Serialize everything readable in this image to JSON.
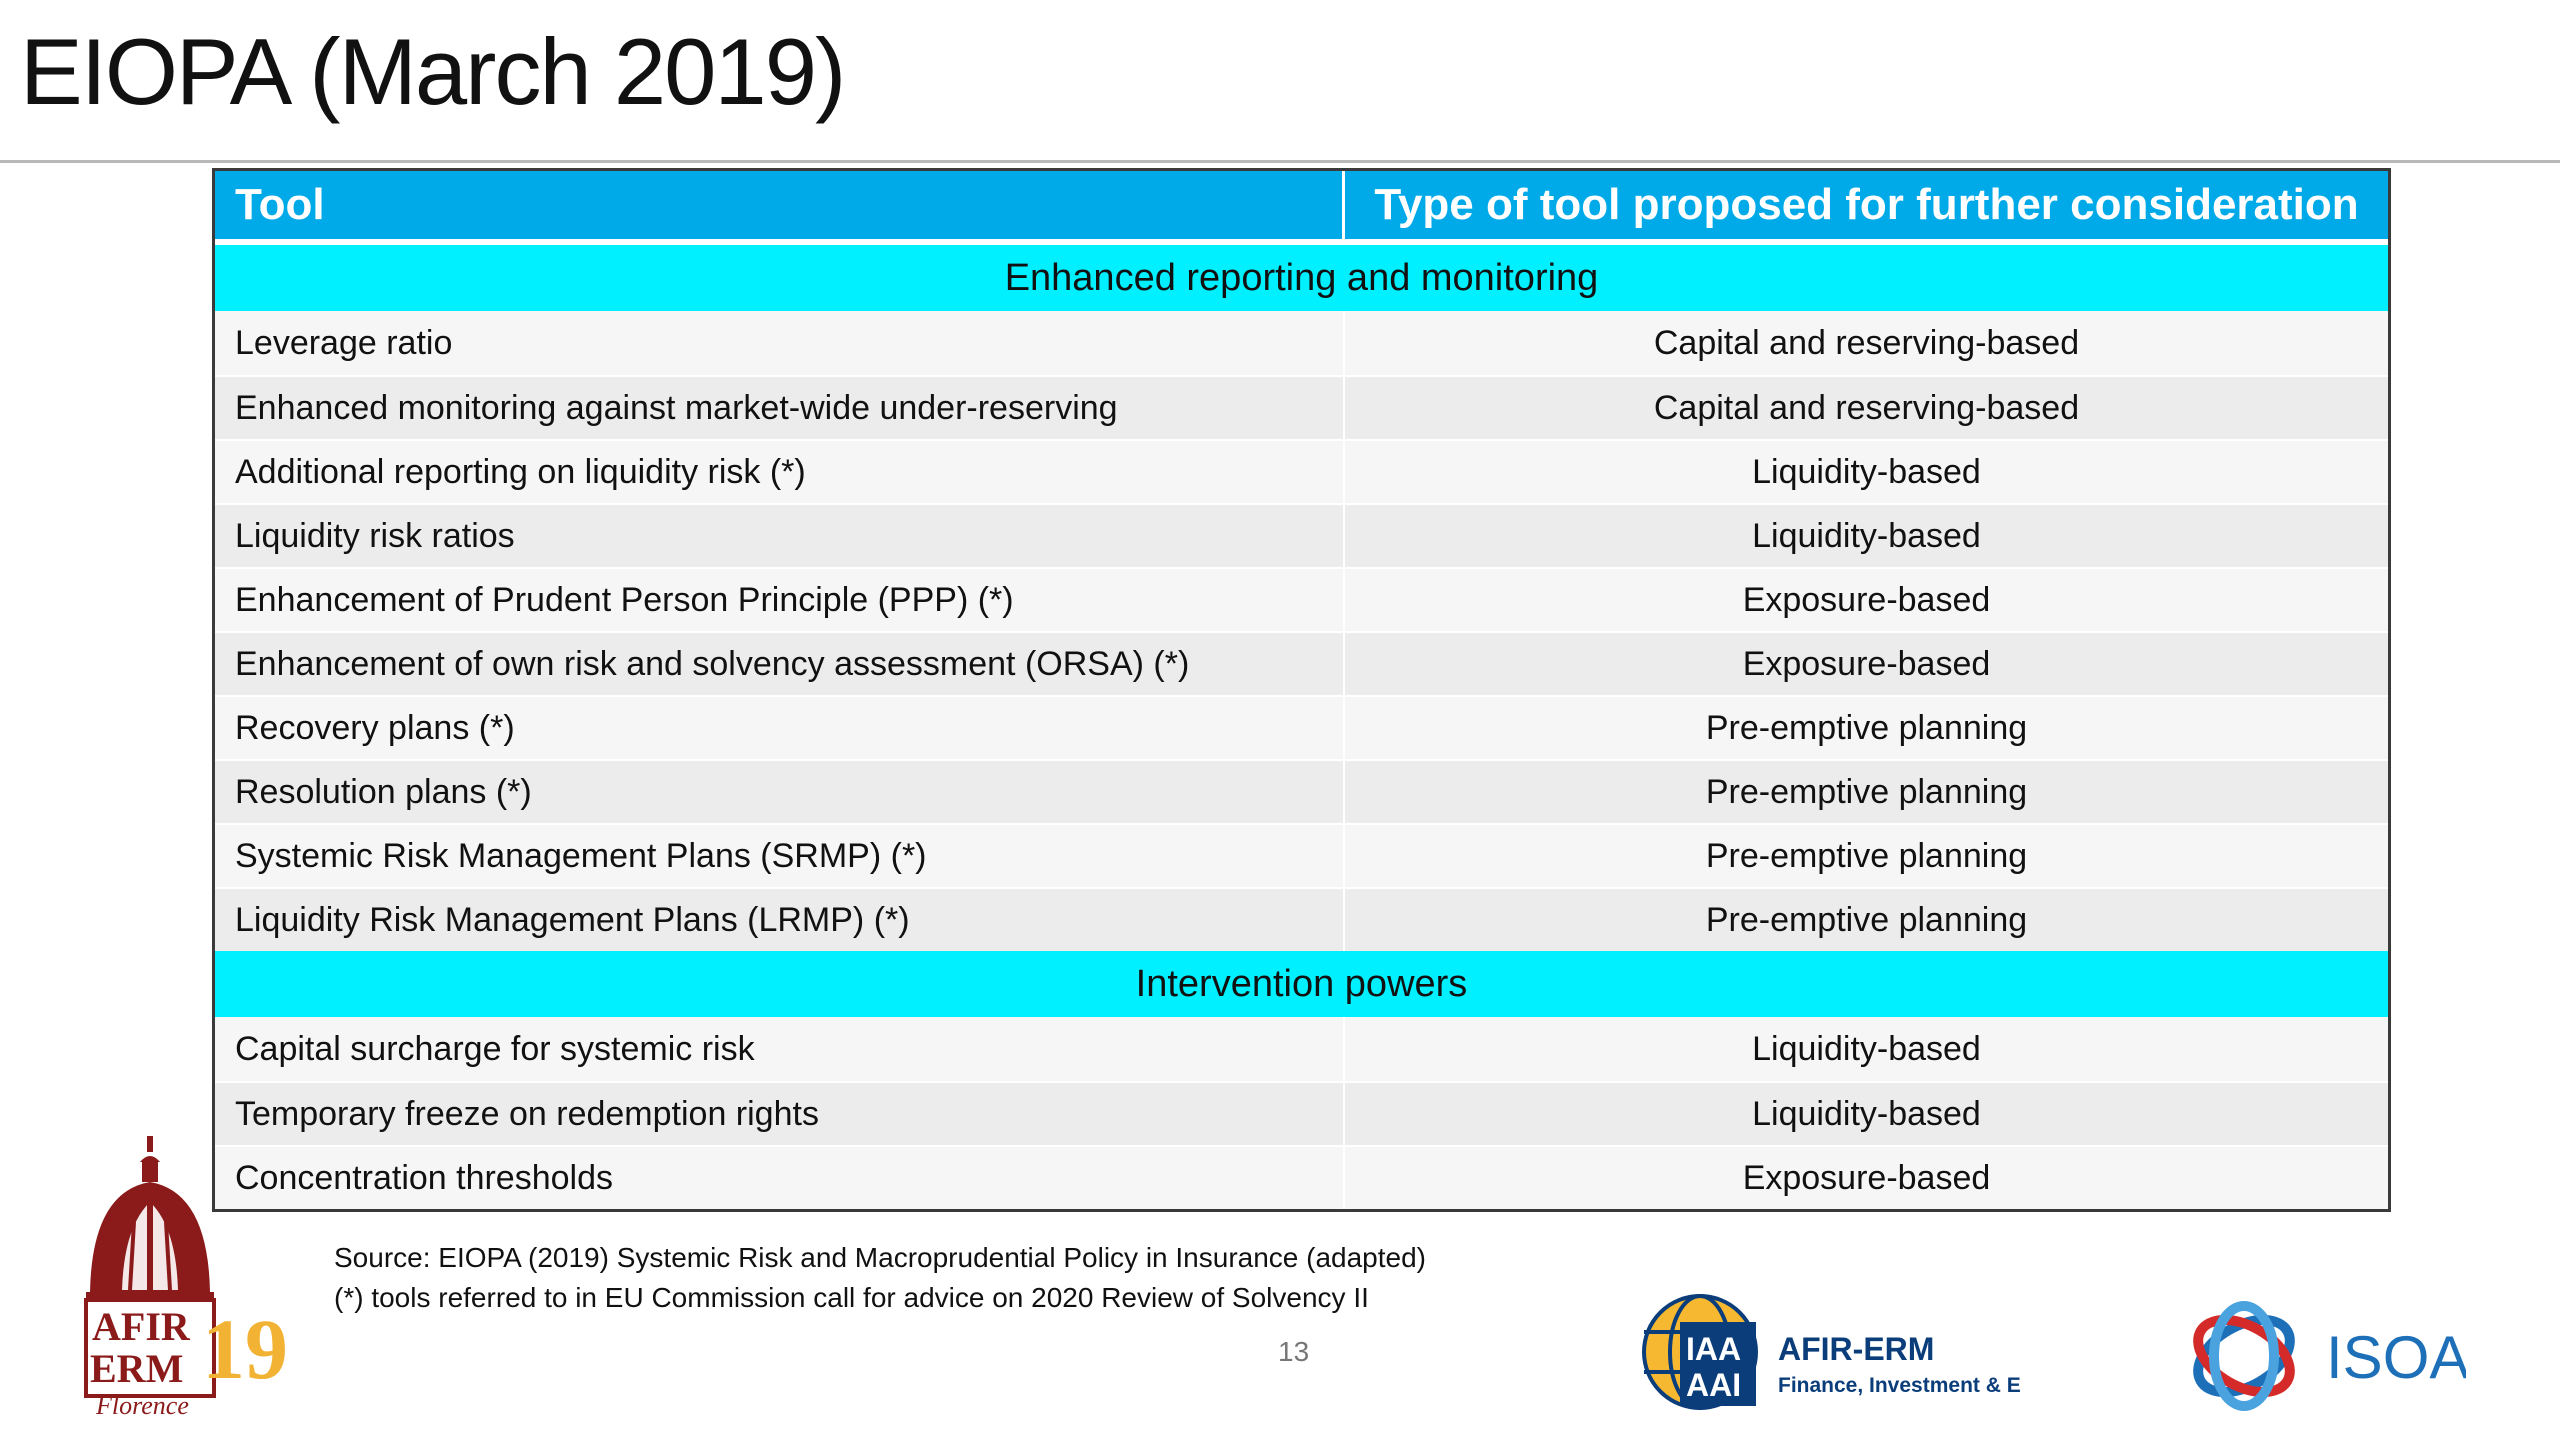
{
  "slide": {
    "title": "EIOPA (March 2019)",
    "page_number": "13"
  },
  "table": {
    "headers": [
      "Tool",
      "Type of tool proposed for further consideration"
    ],
    "sections": [
      {
        "label": "Enhanced reporting and monitoring",
        "rows": [
          [
            "Leverage ratio",
            "Capital and reserving-based"
          ],
          [
            "Enhanced monitoring against market-wide under-reserving",
            "Capital and reserving-based"
          ],
          [
            "Additional reporting on liquidity risk (*)",
            "Liquidity-based"
          ],
          [
            "Liquidity risk ratios",
            "Liquidity-based"
          ],
          [
            "Enhancement of Prudent Person Principle (PPP) (*)",
            "Exposure-based"
          ],
          [
            "Enhancement of own risk and solvency assessment (ORSA) (*)",
            "Exposure-based"
          ],
          [
            "Recovery plans (*)",
            "Pre-emptive planning"
          ],
          [
            "Resolution plans (*)",
            "Pre-emptive planning"
          ],
          [
            "Systemic Risk Management Plans (SRMP) (*)",
            "Pre-emptive planning"
          ],
          [
            "Liquidity Risk Management Plans (LRMP) (*)",
            "Pre-emptive planning"
          ]
        ]
      },
      {
        "label": "Intervention powers",
        "rows": [
          [
            "Capital surcharge for systemic risk",
            "Liquidity-based"
          ],
          [
            "Temporary freeze on redemption rights",
            "Liquidity-based"
          ],
          [
            "Concentration thresholds",
            "Exposure-based"
          ]
        ]
      }
    ]
  },
  "footnotes": {
    "source": "Source: EIOPA (2019) Systemic Risk and Macroprudential Policy in Insurance (adapted)",
    "note": "(*) tools referred to in EU Commission call for advice on 2020 Review of Solvency II"
  },
  "logos": {
    "afir_left": {
      "line1": "AFIR",
      "line2": "ERM",
      "year": "19",
      "city": "Florence"
    },
    "iaa": {
      "badge1": "IAA",
      "badge2": "AAI",
      "name": "AFIR-ERM",
      "tagline": "Finance, Investment & ERM"
    },
    "isoa": {
      "name": "ISOA"
    }
  },
  "colors": {
    "header_bg": "#00a9e8",
    "section_bg": "#00f0ff",
    "row_alt": "#ececec",
    "row_base": "#f6f6f6",
    "brand_dark_red": "#8b1a1a",
    "brand_gold": "#f2b233",
    "iaa_blue": "#0a3d7a",
    "isoa_blue": "#1d6fb8"
  }
}
